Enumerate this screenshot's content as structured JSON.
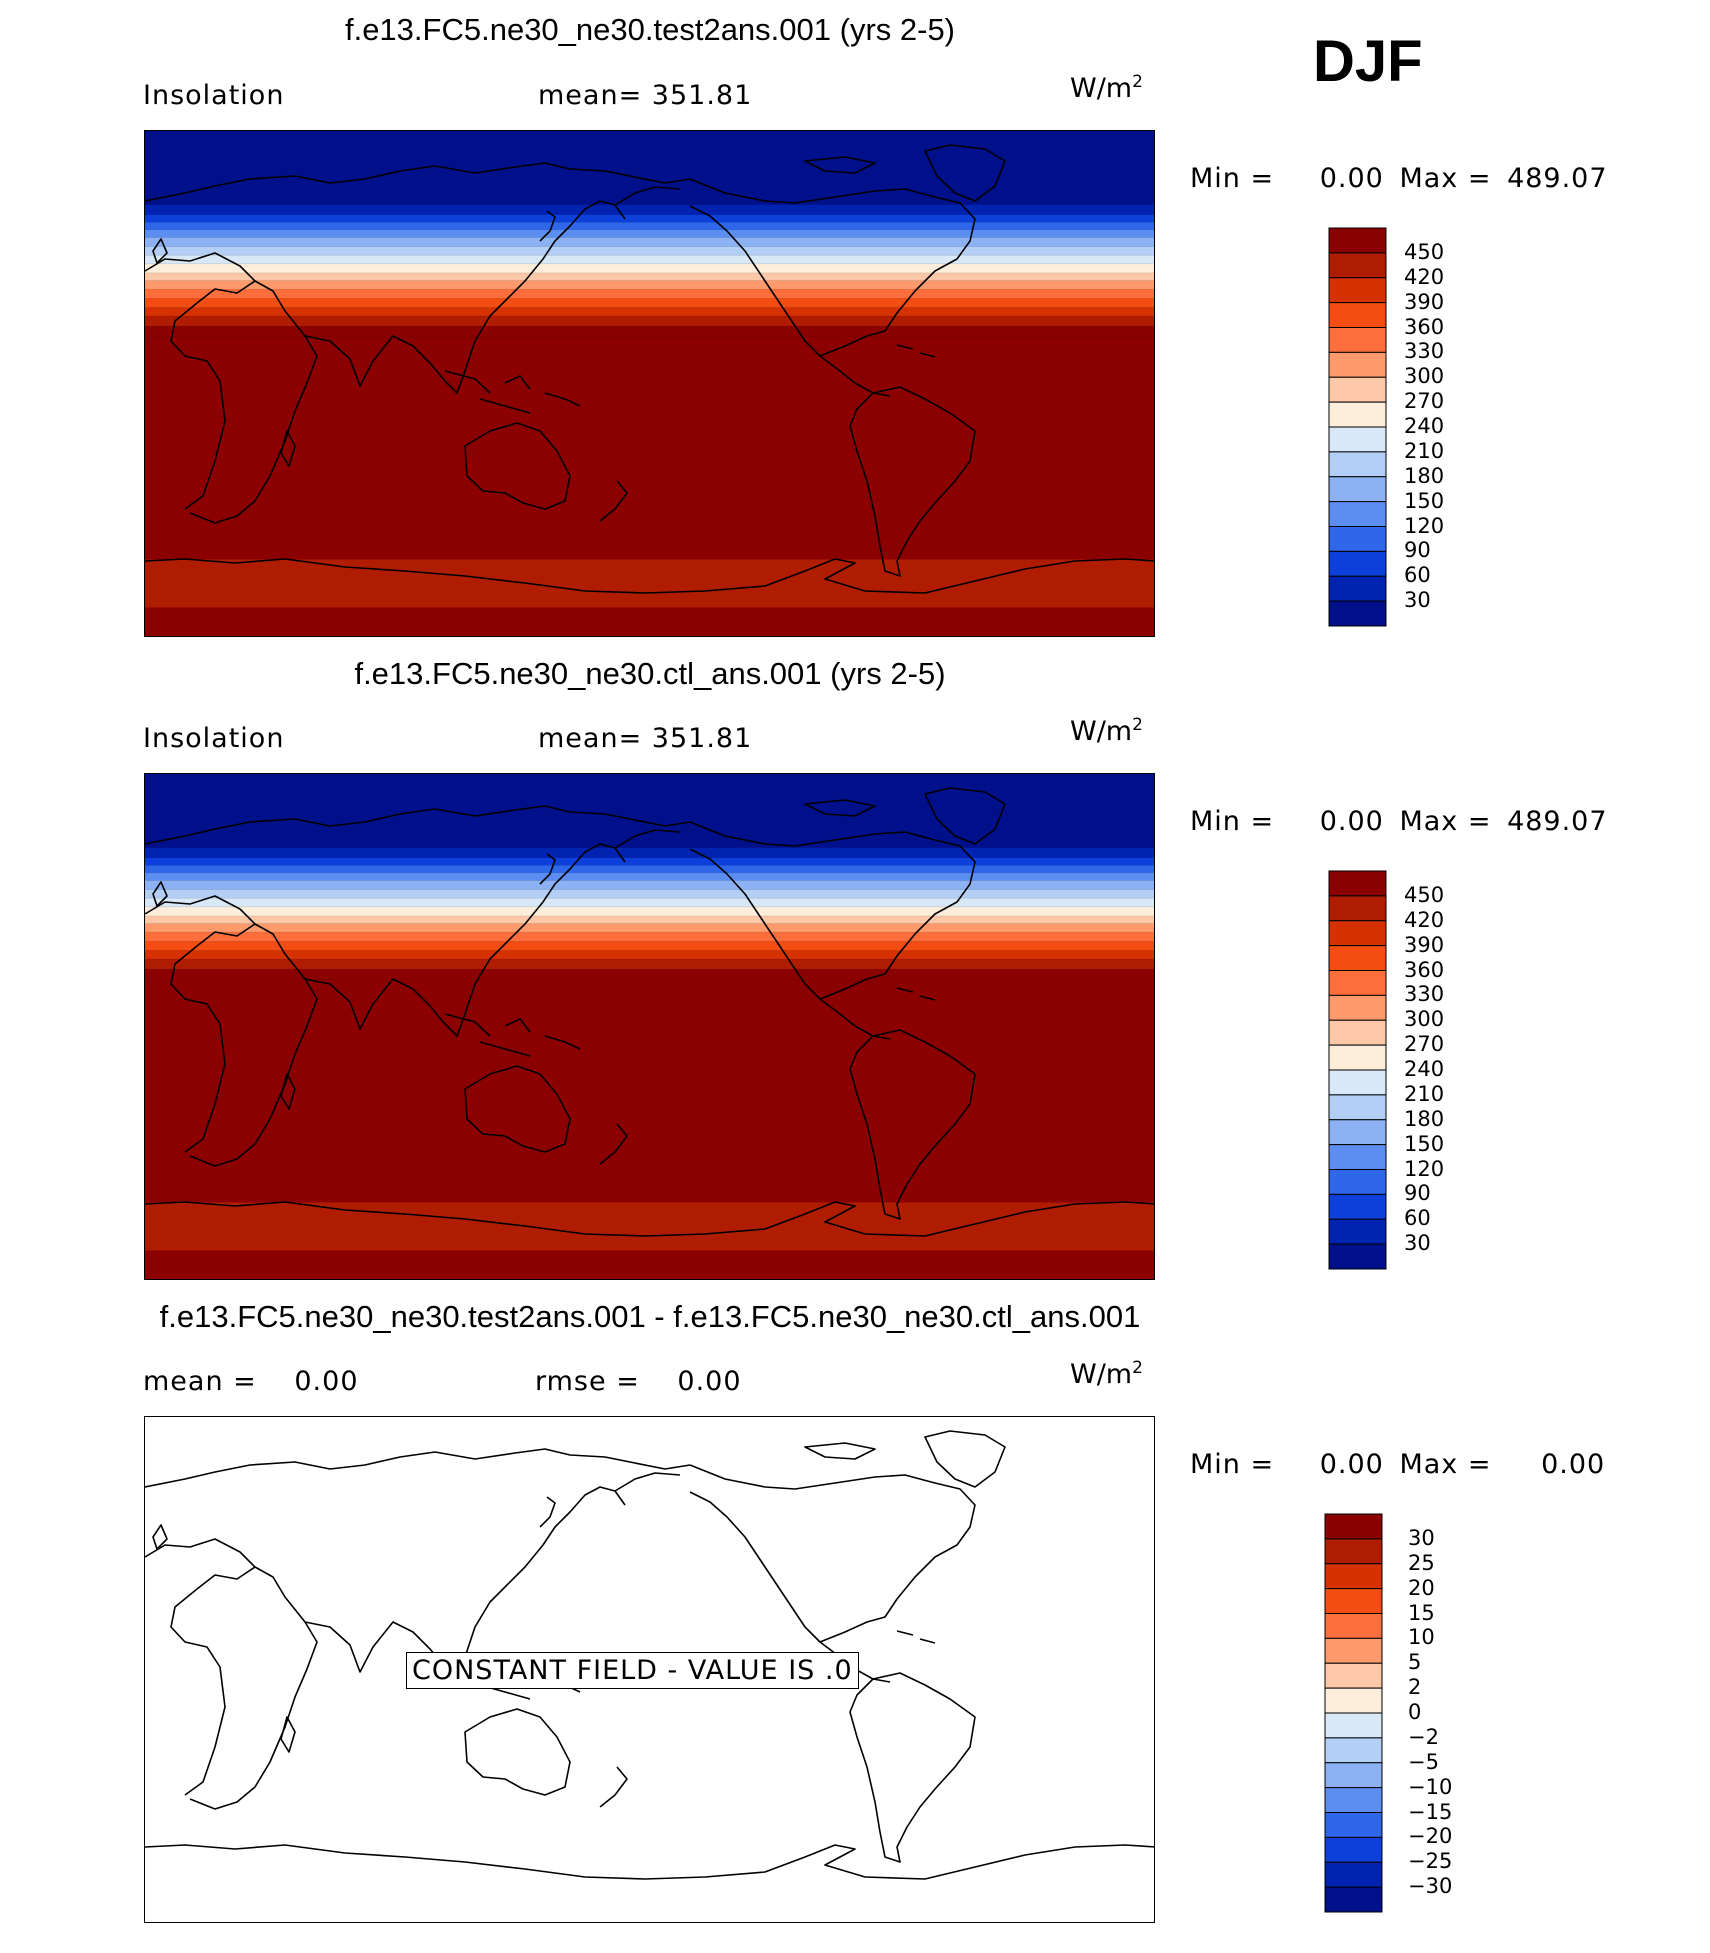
{
  "season": "DJF",
  "panels": [
    {
      "title": "f.e13.FC5.ne30_ne30.test2ans.001 (yrs 2-5)",
      "left_label": "Insolation",
      "mid_label": "mean=",
      "mid_value": "351.81",
      "unit_base": "W/m",
      "unit_exp": "2",
      "min_label": "Min =",
      "min_value": "0.00",
      "max_label": "Max =",
      "max_value": "489.07",
      "colorbar_ticks": [
        "450",
        "420",
        "390",
        "360",
        "330",
        "300",
        "270",
        "240",
        "210",
        "180",
        "150",
        "120",
        "90",
        "60",
        "30"
      ]
    },
    {
      "title": "f.e13.FC5.ne30_ne30.ctl_ans.001 (yrs 2-5)",
      "left_label": "Insolation",
      "mid_label": "mean=",
      "mid_value": "351.81",
      "unit_base": "W/m",
      "unit_exp": "2",
      "min_label": "Min =",
      "min_value": "0.00",
      "max_label": "Max =",
      "max_value": "489.07",
      "colorbar_ticks": [
        "450",
        "420",
        "390",
        "360",
        "330",
        "300",
        "270",
        "240",
        "210",
        "180",
        "150",
        "120",
        "90",
        "60",
        "30"
      ]
    },
    {
      "title": "f.e13.FC5.ne30_ne30.test2ans.001 - f.e13.FC5.ne30_ne30.ctl_ans.001",
      "left_label": "mean =",
      "left_value": "0.00",
      "mid_label": "rmse =",
      "mid_value": "0.00",
      "unit_base": "W/m",
      "unit_exp": "2",
      "min_label": "Min =",
      "min_value": "0.00",
      "max_label": "Max =",
      "max_value": "0.00",
      "colorbar_ticks": [
        "30",
        "25",
        "20",
        "15",
        "10",
        "5",
        "2",
        "0",
        "−2",
        "−5",
        "−10",
        "−15",
        "−20",
        "−25",
        "−30"
      ],
      "constant_field_label": "CONSTANT FIELD - VALUE IS .0"
    }
  ],
  "colors": {
    "colorbar_16": [
      "#8b0000",
      "#b01c00",
      "#d63100",
      "#f44d14",
      "#fc6f3d",
      "#fe9a6b",
      "#fdc8a8",
      "#fdeedc",
      "#d8e8f6",
      "#b3cff5",
      "#8cb2f3",
      "#5b8ef0",
      "#2f67ea",
      "#0d40db",
      "#0022b0",
      "#000f8a"
    ],
    "map_bands": [
      "#000f8a",
      "#0022b0",
      "#0d40db",
      "#2f67ea",
      "#5b8ef0",
      "#8cb2f3",
      "#b3cff5",
      "#d8e8f6",
      "#fdeedc",
      "#fdc8a8",
      "#fe9a6b",
      "#fc6f3d",
      "#f44d14",
      "#d63100",
      "#b01c00",
      "#8b0000"
    ]
  }
}
